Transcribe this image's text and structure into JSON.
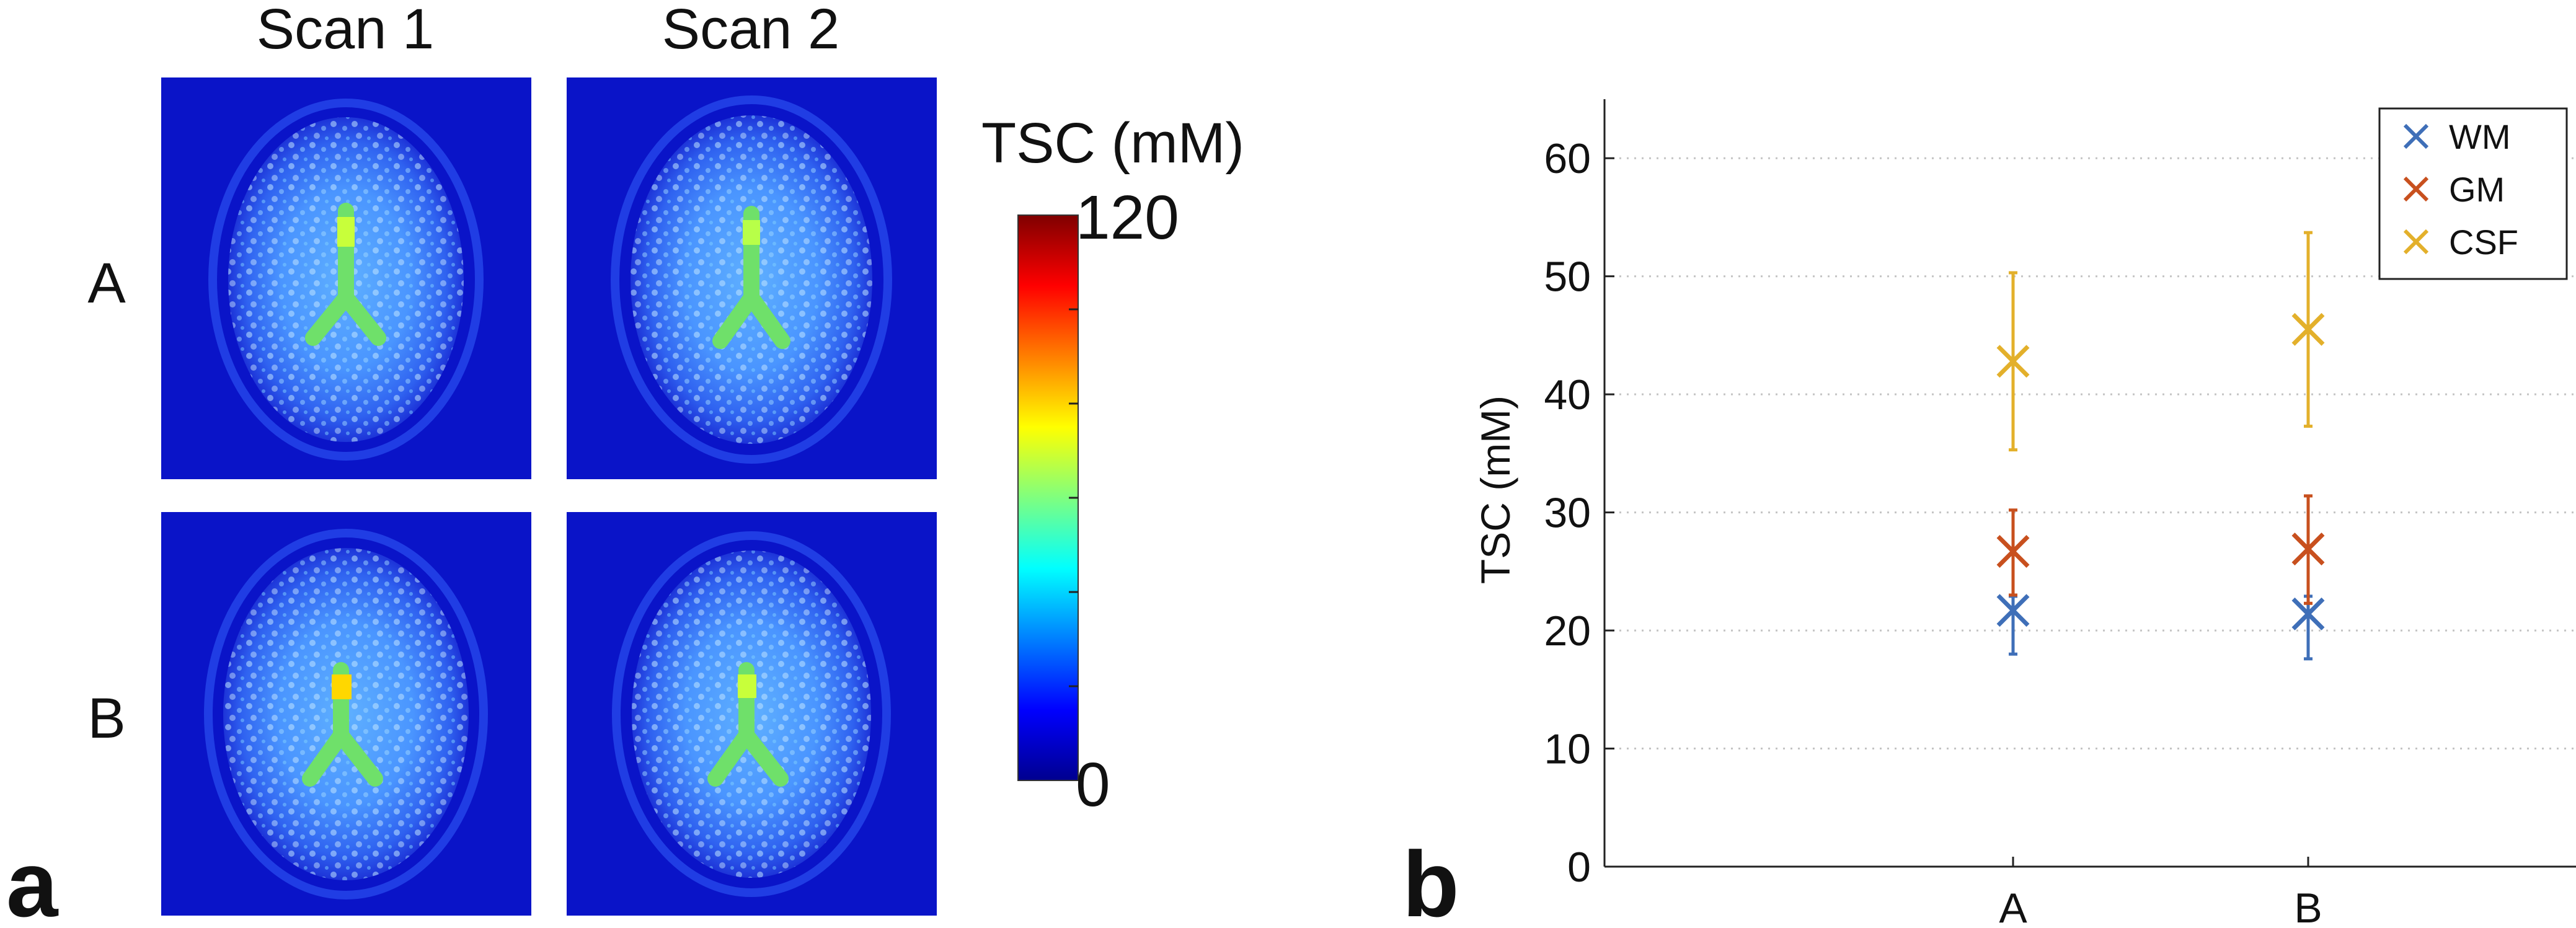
{
  "panel_a": {
    "letter": "a",
    "column_labels": [
      "Scan 1",
      "Scan 2"
    ],
    "row_labels": [
      "A",
      "B"
    ],
    "colorbar": {
      "title": "TSC (mM)",
      "max_label": "120",
      "min_label": "0"
    },
    "colormap": [
      "#00008f",
      "#0000ff",
      "#007fff",
      "#00ffff",
      "#7fff7f",
      "#ffff00",
      "#ff7f00",
      "#ff0000",
      "#7f0000"
    ]
  },
  "panel_b": {
    "letter": "b"
  },
  "chart_data": {
    "type": "scatter",
    "categories": [
      "A",
      "B"
    ],
    "ylabel": "TSC (mM)",
    "xlabel": "",
    "ylim": [
      0,
      65
    ],
    "yticks": [
      0,
      10,
      20,
      30,
      40,
      50,
      60
    ],
    "grid": "horizontal dotted",
    "legend_position": "top-right",
    "series": [
      {
        "name": "WM",
        "color": "#3f6fb8",
        "values": [
          21.7,
          21.4
        ],
        "err_low": [
          18.0,
          17.6
        ],
        "err_high": [
          22.9,
          22.9
        ]
      },
      {
        "name": "GM",
        "color": "#c8501e",
        "values": [
          26.7,
          26.9
        ],
        "err_low": [
          23.0,
          22.3
        ],
        "err_high": [
          30.2,
          31.4
        ]
      },
      {
        "name": "CSF",
        "color": "#e3b02b",
        "values": [
          42.8,
          45.5
        ],
        "err_low": [
          35.3,
          37.3
        ],
        "err_high": [
          50.3,
          53.7
        ]
      }
    ]
  }
}
